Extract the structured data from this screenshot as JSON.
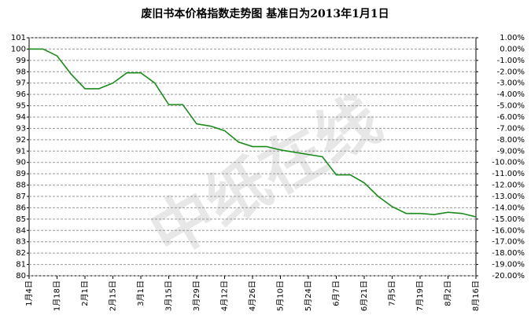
{
  "chart_data": {
    "type": "line",
    "title": "废旧书本价格指数走势图 基准日为2013年1月1日",
    "watermark": "中纸在线",
    "categories": [
      "1月4日",
      null,
      "1月18日",
      null,
      "2月1日",
      null,
      "2月15日",
      null,
      "3月1日",
      null,
      "3月15日",
      null,
      "3月29日",
      null,
      "4月12日",
      null,
      "4月26日",
      null,
      "5月10日",
      null,
      "5月24日",
      null,
      "6月7日",
      null,
      "6月21日",
      null,
      "7月5日",
      null,
      "7月19日",
      null,
      "8月2日",
      null,
      "8月16日"
    ],
    "values": [
      100,
      100,
      99.4,
      97.8,
      96.5,
      96.5,
      97.0,
      97.9,
      97.9,
      97.0,
      95.1,
      95.1,
      93.4,
      93.2,
      92.8,
      91.8,
      91.4,
      91.4,
      91.1,
      90.9,
      90.7,
      90.5,
      88.9,
      88.9,
      88.2,
      87.0,
      86.1,
      85.5,
      85.5,
      85.4,
      85.6,
      85.5,
      85.2
    ],
    "color": "#1a8a1a",
    "ylim": [
      80,
      101
    ],
    "yticks": [
      80,
      81,
      82,
      83,
      84,
      85,
      86,
      87,
      88,
      89,
      90,
      91,
      92,
      93,
      94,
      95,
      96,
      97,
      98,
      99,
      100,
      101
    ],
    "y2lim": [
      -20,
      1
    ],
    "y2ticks": [
      {
        "value": -20,
        "label": "-20.00%"
      },
      {
        "value": -19,
        "label": "-19.00%"
      },
      {
        "value": -18,
        "label": "-18.00%"
      },
      {
        "value": -17,
        "label": "-17.00%"
      },
      {
        "value": -16,
        "label": "-16.00%"
      },
      {
        "value": -15,
        "label": "-15.00%"
      },
      {
        "value": -14,
        "label": "-14.00%"
      },
      {
        "value": -13,
        "label": "-13.00%"
      },
      {
        "value": -12,
        "label": "-12.00%"
      },
      {
        "value": -11,
        "label": "-11.00%"
      },
      {
        "value": -10,
        "label": "-10.00%"
      },
      {
        "value": -9,
        "label": "-9.00%"
      },
      {
        "value": -8,
        "label": "-8.00%"
      },
      {
        "value": -7,
        "label": "-7.00%"
      },
      {
        "value": -6,
        "label": "-6.00%"
      },
      {
        "value": -5,
        "label": "-5.00%"
      },
      {
        "value": -4,
        "label": "-4.00%"
      },
      {
        "value": -3,
        "label": "-3.00%"
      },
      {
        "value": -2,
        "label": "-2.00%"
      },
      {
        "value": -1,
        "label": "-1.00%"
      },
      {
        "value": 0,
        "label": "0.00%"
      },
      {
        "value": 1,
        "label": "1.00%"
      }
    ],
    "grid": true
  }
}
